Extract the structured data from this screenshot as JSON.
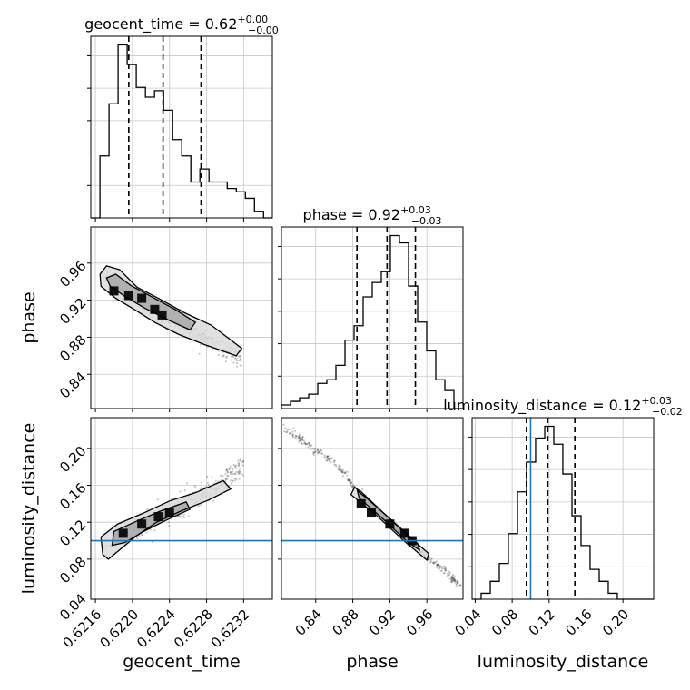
{
  "chart_data": {
    "type": "corner",
    "parameters": [
      "geocent_time",
      "phase",
      "luminosity_distance"
    ],
    "truths": {
      "luminosity_distance": 0.1
    },
    "truth_color": "#1f77b4",
    "grid": true,
    "titles": [
      {
        "param": "geocent_time",
        "label": "geocent_time",
        "median": "0.62",
        "plus": "+0.00",
        "minus": "−0.00"
      },
      {
        "param": "phase",
        "label": "phase",
        "median": "0.92",
        "plus": "+0.03",
        "minus": "−0.03"
      },
      {
        "param": "luminosity_distance",
        "label": "luminosity_distance",
        "median": "0.12",
        "plus": "+0.03",
        "minus": "−0.02"
      }
    ],
    "axes": {
      "geocent_time": {
        "label": "geocent_time",
        "range": [
          0.62155,
          0.62351
        ],
        "ticks": [
          0.6216,
          0.622,
          0.6224,
          0.6228,
          0.6232
        ],
        "tick_labels": [
          "0.6216",
          "0.6220",
          "0.6224",
          "0.6228",
          "0.6232"
        ]
      },
      "phase": {
        "label": "phase",
        "range": [
          0.803,
          0.999
        ],
        "ticks": [
          0.84,
          0.88,
          0.92,
          0.96
        ],
        "tick_labels": [
          "0.84",
          "0.88",
          "0.92",
          "0.96"
        ]
      },
      "luminosity_distance": {
        "label": "luminosity_distance",
        "range": [
          0.0366,
          0.2333
        ],
        "ticks": [
          0.04,
          0.08,
          0.12,
          0.16,
          0.2
        ],
        "tick_labels": [
          "0.04",
          "0.08",
          "0.12",
          "0.16",
          "0.20"
        ]
      }
    },
    "histograms": [
      {
        "param": "geocent_time",
        "bin_edges": [
          0.62155,
          0.621649,
          0.621747,
          0.621845,
          0.621943,
          0.622041,
          0.62214,
          0.622238,
          0.622336,
          0.622434,
          0.622532,
          0.62263,
          0.622728,
          0.622826,
          0.622925,
          0.623023,
          0.623121,
          0.623219,
          0.623317,
          0.623415,
          0.62351
        ],
        "counts": [
          0,
          19,
          35,
          53,
          47,
          40,
          37,
          39,
          33,
          24,
          19,
          11,
          15,
          11,
          11,
          9,
          8,
          6,
          2,
          0
        ],
        "quantiles": [
          0.62196,
          0.62233,
          0.62274
        ]
      },
      {
        "param": "phase",
        "bin_edges": [
          0.803,
          0.8128,
          0.8226,
          0.8324,
          0.8422,
          0.852,
          0.8618,
          0.8716,
          0.8814,
          0.8912,
          0.901,
          0.9108,
          0.9206,
          0.9304,
          0.9402,
          0.95,
          0.9598,
          0.9696,
          0.9794,
          0.9892,
          0.999
        ],
        "counts": [
          1,
          2,
          3,
          4,
          7,
          8,
          12,
          19,
          23,
          31,
          35,
          38,
          48,
          46,
          34,
          24,
          16,
          8,
          5,
          0
        ],
        "quantiles": [
          0.8845,
          0.917,
          0.9476
        ]
      },
      {
        "param": "luminosity_distance",
        "bin_edges": [
          0.0366,
          0.0464,
          0.0563,
          0.0661,
          0.0759,
          0.0858,
          0.0956,
          0.1054,
          0.1153,
          0.1251,
          0.1349,
          0.1448,
          0.1546,
          0.1644,
          0.1743,
          0.1841,
          0.1939,
          0.2038,
          0.2136,
          0.2235,
          0.2333
        ],
        "counts": [
          0,
          1,
          3,
          6,
          11,
          18,
          23,
          27,
          29,
          26,
          21,
          14,
          9,
          5,
          3,
          1,
          0,
          0,
          0,
          0
        ],
        "quantiles": [
          0.0954,
          0.1186,
          0.1479
        ]
      }
    ],
    "pairs": [
      {
        "x": "geocent_time",
        "y": "phase",
        "ridge": [
          [
            0.62172,
            0.945
          ],
          [
            0.62185,
            0.936
          ],
          [
            0.62198,
            0.928
          ],
          [
            0.62212,
            0.92
          ],
          [
            0.62225,
            0.91
          ],
          [
            0.6224,
            0.9
          ],
          [
            0.62255,
            0.893
          ],
          [
            0.6227,
            0.884
          ],
          [
            0.62285,
            0.876
          ],
          [
            0.62302,
            0.865
          ],
          [
            0.62318,
            0.855
          ]
        ],
        "width": 0.0095,
        "dense_cells": [
          [
            0.6218,
            0.93
          ],
          [
            0.62196,
            0.925
          ],
          [
            0.6221,
            0.922
          ],
          [
            0.62224,
            0.91
          ],
          [
            0.62232,
            0.904
          ]
        ],
        "contours": [
          [
            [
              0.62165,
              0.948
            ],
            [
              0.62172,
              0.957
            ],
            [
              0.62186,
              0.953
            ],
            [
              0.62205,
              0.934
            ],
            [
              0.62228,
              0.922
            ],
            [
              0.62255,
              0.907
            ],
            [
              0.62285,
              0.893
            ],
            [
              0.62318,
              0.868
            ],
            [
              0.62312,
              0.86
            ],
            [
              0.62278,
              0.872
            ],
            [
              0.6225,
              0.883
            ],
            [
              0.62224,
              0.896
            ],
            [
              0.62202,
              0.91
            ],
            [
              0.62182,
              0.922
            ],
            [
              0.62166,
              0.935
            ]
          ],
          [
            [
              0.62172,
              0.944
            ],
            [
              0.62182,
              0.948
            ],
            [
              0.62198,
              0.936
            ],
            [
              0.62222,
              0.923
            ],
            [
              0.62246,
              0.91
            ],
            [
              0.62268,
              0.896
            ],
            [
              0.62262,
              0.888
            ],
            [
              0.6224,
              0.898
            ],
            [
              0.62214,
              0.911
            ],
            [
              0.62192,
              0.924
            ],
            [
              0.62176,
              0.935
            ]
          ]
        ]
      },
      {
        "x": "geocent_time",
        "y": "luminosity_distance",
        "ridge": [
          [
            0.6217,
            0.095
          ],
          [
            0.62185,
            0.103
          ],
          [
            0.622,
            0.112
          ],
          [
            0.62215,
            0.12
          ],
          [
            0.6223,
            0.128
          ],
          [
            0.62245,
            0.135
          ],
          [
            0.6226,
            0.142
          ],
          [
            0.62275,
            0.15
          ],
          [
            0.6229,
            0.158
          ],
          [
            0.62305,
            0.17
          ],
          [
            0.6232,
            0.185
          ]
        ],
        "width": 0.012,
        "dense_cells": [
          [
            0.6219,
            0.108
          ],
          [
            0.6221,
            0.118
          ],
          [
            0.62228,
            0.126
          ],
          [
            0.6224,
            0.13
          ]
        ],
        "contours": [
          [
            [
              0.62168,
              0.085
            ],
            [
              0.62166,
              0.104
            ],
            [
              0.62184,
              0.118
            ],
            [
              0.62212,
              0.13
            ],
            [
              0.6224,
              0.143
            ],
            [
              0.62268,
              0.152
            ],
            [
              0.62298,
              0.165
            ],
            [
              0.62306,
              0.156
            ],
            [
              0.62282,
              0.144
            ],
            [
              0.62252,
              0.132
            ],
            [
              0.62226,
              0.12
            ],
            [
              0.62204,
              0.105
            ],
            [
              0.62186,
              0.09
            ],
            [
              0.62174,
              0.08
            ]
          ],
          [
            [
              0.62178,
              0.095
            ],
            [
              0.6218,
              0.11
            ],
            [
              0.62202,
              0.12
            ],
            [
              0.6223,
              0.132
            ],
            [
              0.62258,
              0.142
            ],
            [
              0.62262,
              0.134
            ],
            [
              0.62236,
              0.122
            ],
            [
              0.62212,
              0.11
            ],
            [
              0.62192,
              0.098
            ]
          ]
        ]
      },
      {
        "x": "phase",
        "y": "luminosity_distance",
        "ridge": [
          [
            0.805,
            0.222
          ],
          [
            0.83,
            0.205
          ],
          [
            0.86,
            0.185
          ],
          [
            0.885,
            0.155
          ],
          [
            0.905,
            0.134
          ],
          [
            0.925,
            0.115
          ],
          [
            0.945,
            0.095
          ],
          [
            0.965,
            0.078
          ],
          [
            0.985,
            0.062
          ],
          [
            0.998,
            0.05
          ]
        ],
        "width": 0.004,
        "dense_cells": [
          [
            0.889,
            0.14
          ],
          [
            0.9,
            0.13
          ],
          [
            0.92,
            0.118
          ],
          [
            0.936,
            0.108
          ],
          [
            0.944,
            0.1
          ]
        ],
        "contours": [
          [
            [
              0.882,
              0.158
            ],
            [
              0.878,
              0.15
            ],
            [
              0.905,
              0.128
            ],
            [
              0.935,
              0.1
            ],
            [
              0.96,
              0.079
            ],
            [
              0.962,
              0.086
            ],
            [
              0.94,
              0.105
            ],
            [
              0.91,
              0.133
            ],
            [
              0.89,
              0.152
            ]
          ],
          [
            [
              0.885,
              0.154
            ],
            [
              0.887,
              0.146
            ],
            [
              0.91,
              0.126
            ],
            [
              0.94,
              0.098
            ],
            [
              0.952,
              0.09
            ],
            [
              0.95,
              0.097
            ],
            [
              0.92,
              0.124
            ],
            [
              0.895,
              0.146
            ]
          ]
        ]
      }
    ]
  }
}
